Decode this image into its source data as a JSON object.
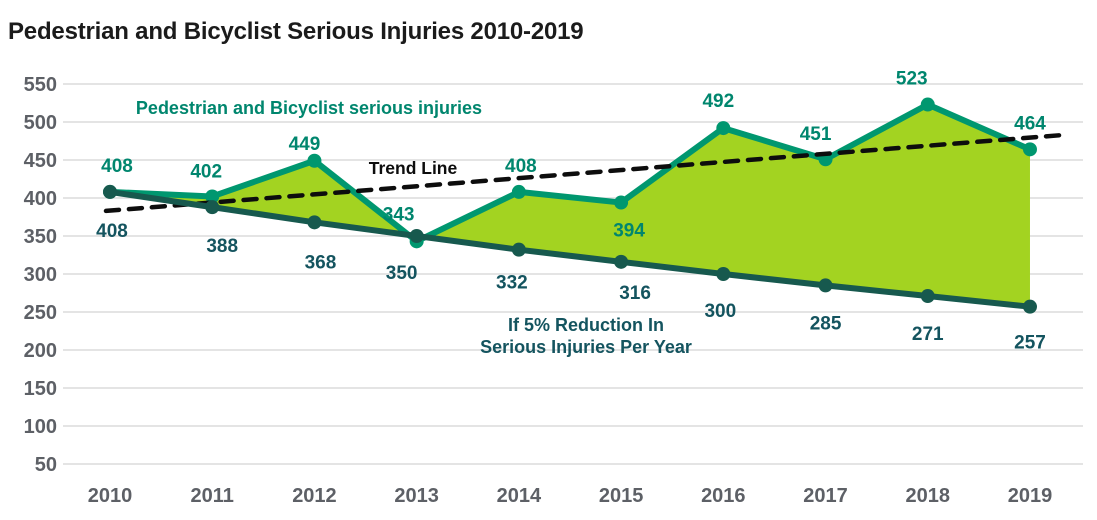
{
  "title": "Pedestrian and Bicyclist Serious Injuries 2010-2019",
  "chart_data": {
    "type": "area",
    "x": [
      2010,
      2011,
      2012,
      2013,
      2014,
      2015,
      2016,
      2017,
      2018,
      2019
    ],
    "series": [
      {
        "name": "Pedestrian and Bicyclist serious injuries",
        "values": [
          408,
          402,
          449,
          343,
          408,
          394,
          492,
          451,
          523,
          464
        ],
        "line_color": "#00976f",
        "label_color": "#00866e",
        "marker": "circle"
      },
      {
        "name": "If 5% Reduction In Serious Injuries Per Year",
        "values": [
          408,
          388,
          368,
          350,
          332,
          316,
          300,
          285,
          271,
          257
        ],
        "line_color": "#17594e",
        "label_color": "#14545f",
        "marker": "circle"
      }
    ],
    "area_fill_color": "#a3d321",
    "trend": {
      "label": "Trend Line",
      "style": "dashed",
      "color": "#0d0d0d",
      "value_at_2010": 383,
      "value_at_right_end": 483
    },
    "annotations": {
      "series1_label": "Pedestrian and Bicyclist serious injuries",
      "trend_label": "Trend Line",
      "series2_label_line1": "If 5% Reduction In",
      "series2_label_line2": "Serious Injuries Per Year"
    },
    "yticks": [
      550,
      500,
      450,
      400,
      350,
      300,
      250,
      200,
      150,
      100,
      50
    ],
    "ylim": [
      50,
      550
    ],
    "grid": "horizontal",
    "axis_text_color": "#5d6066",
    "gridline_color": "#dcdcdc",
    "title_color": "#1b1b1b",
    "legend_position": "inline-annotations"
  }
}
